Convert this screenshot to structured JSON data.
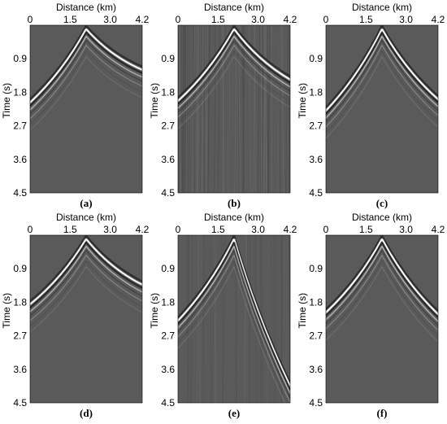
{
  "chart_data": [
    {
      "type": "image",
      "panel": "(a)",
      "caption": "(a)",
      "xlabel": "Distance (km)",
      "ylabel": "Time (s)",
      "xticks": [
        "0",
        "1.5",
        "3.0",
        "4.2"
      ],
      "yticks": [
        "0.9",
        "1.8",
        "2.7",
        "3.6",
        "4.5"
      ],
      "xlim": [
        0,
        4.2
      ],
      "ylim": [
        0,
        4.5
      ],
      "apex_km": 2.1,
      "apex_time_s": 0.1,
      "noise": "low",
      "background": "#5a5a5a"
    },
    {
      "type": "image",
      "panel": "(b)",
      "caption": "(b)",
      "xlabel": "Distance (km)",
      "ylabel": "Time (s)",
      "xticks": [
        "0",
        "1.5",
        "3.0",
        "4.2"
      ],
      "yticks": [
        "0.9",
        "1.8",
        "2.7",
        "3.6",
        "4.5"
      ],
      "xlim": [
        0,
        4.2
      ],
      "ylim": [
        0,
        4.5
      ],
      "apex_km": 2.1,
      "apex_time_s": 0.1,
      "noise": "high",
      "background": "#5a5a5a"
    },
    {
      "type": "image",
      "panel": "(c)",
      "caption": "(c)",
      "xlabel": "Distance (km)",
      "ylabel": "Time (s)",
      "xticks": [
        "0",
        "1.5",
        "3.0",
        "4.2"
      ],
      "yticks": [
        "0.9",
        "1.8",
        "2.7",
        "3.6",
        "4.5"
      ],
      "xlim": [
        0,
        4.2
      ],
      "ylim": [
        0,
        4.5
      ],
      "apex_km": 2.1,
      "apex_time_s": 0.1,
      "noise": "low",
      "background": "#5a5a5a"
    },
    {
      "type": "image",
      "panel": "(d)",
      "caption": "(d)",
      "xlabel": "Distance (km)",
      "ylabel": "Time (s)",
      "xticks": [
        "0",
        "1.5",
        "3.0",
        "4.2"
      ],
      "yticks": [
        "0.9",
        "1.8",
        "2.7",
        "3.6",
        "4.5"
      ],
      "xlim": [
        0,
        4.2
      ],
      "ylim": [
        0,
        4.5
      ],
      "apex_km": 2.1,
      "apex_time_s": 0.1,
      "noise": "low",
      "background": "#5a5a5a"
    },
    {
      "type": "image",
      "panel": "(e)",
      "caption": "(e)",
      "xlabel": "Distance (km)",
      "ylabel": "Time (s)",
      "xticks": [
        "0",
        "1.5",
        "3.0",
        "4.2"
      ],
      "yticks": [
        "0.9",
        "1.8",
        "2.7",
        "3.6",
        "4.5"
      ],
      "xlim": [
        0,
        4.2
      ],
      "ylim": [
        0,
        4.5
      ],
      "apex_km": 2.1,
      "apex_time_s": 0.1,
      "noise": "medium",
      "background": "#5a5a5a"
    },
    {
      "type": "image",
      "panel": "(f)",
      "caption": "(f)",
      "xlabel": "Distance (km)",
      "ylabel": "Time (s)",
      "xticks": [
        "0",
        "1.5",
        "3.0",
        "4.2"
      ],
      "yticks": [
        "0.9",
        "1.8",
        "2.7",
        "3.6",
        "4.5"
      ],
      "xlim": [
        0,
        4.2
      ],
      "ylim": [
        0,
        4.5
      ],
      "apex_km": 2.1,
      "apex_time_s": 0.1,
      "noise": "low",
      "background": "#5a5a5a"
    }
  ]
}
